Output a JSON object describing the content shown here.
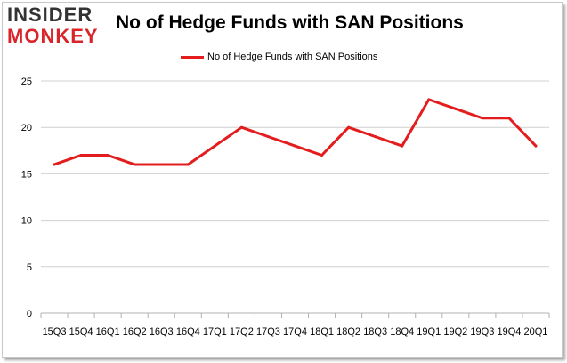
{
  "logo": {
    "top": "INSIDER",
    "bottom": "MONKEY"
  },
  "title": "No of Hedge Funds with SAN Positions",
  "chart_data": {
    "type": "line",
    "title": "No of Hedge Funds with SAN Positions",
    "xlabel": "",
    "ylabel": "",
    "ylim": [
      0,
      25
    ],
    "yticks": [
      0,
      5,
      10,
      15,
      20,
      25
    ],
    "grid": true,
    "legend_position": "top",
    "categories": [
      "15Q3",
      "15Q4",
      "16Q1",
      "16Q2",
      "16Q3",
      "16Q4",
      "17Q1",
      "17Q2",
      "17Q3",
      "17Q4",
      "18Q1",
      "18Q2",
      "18Q3",
      "18Q4",
      "19Q1",
      "19Q2",
      "19Q3",
      "19Q4",
      "20Q1"
    ],
    "series": [
      {
        "name": "No of Hedge Funds with SAN Positions",
        "color": "#e31d1d",
        "values": [
          16,
          17,
          17,
          16,
          16,
          16,
          18,
          20,
          19,
          18,
          17,
          20,
          19,
          18,
          23,
          22,
          21,
          21,
          18
        ]
      }
    ]
  }
}
